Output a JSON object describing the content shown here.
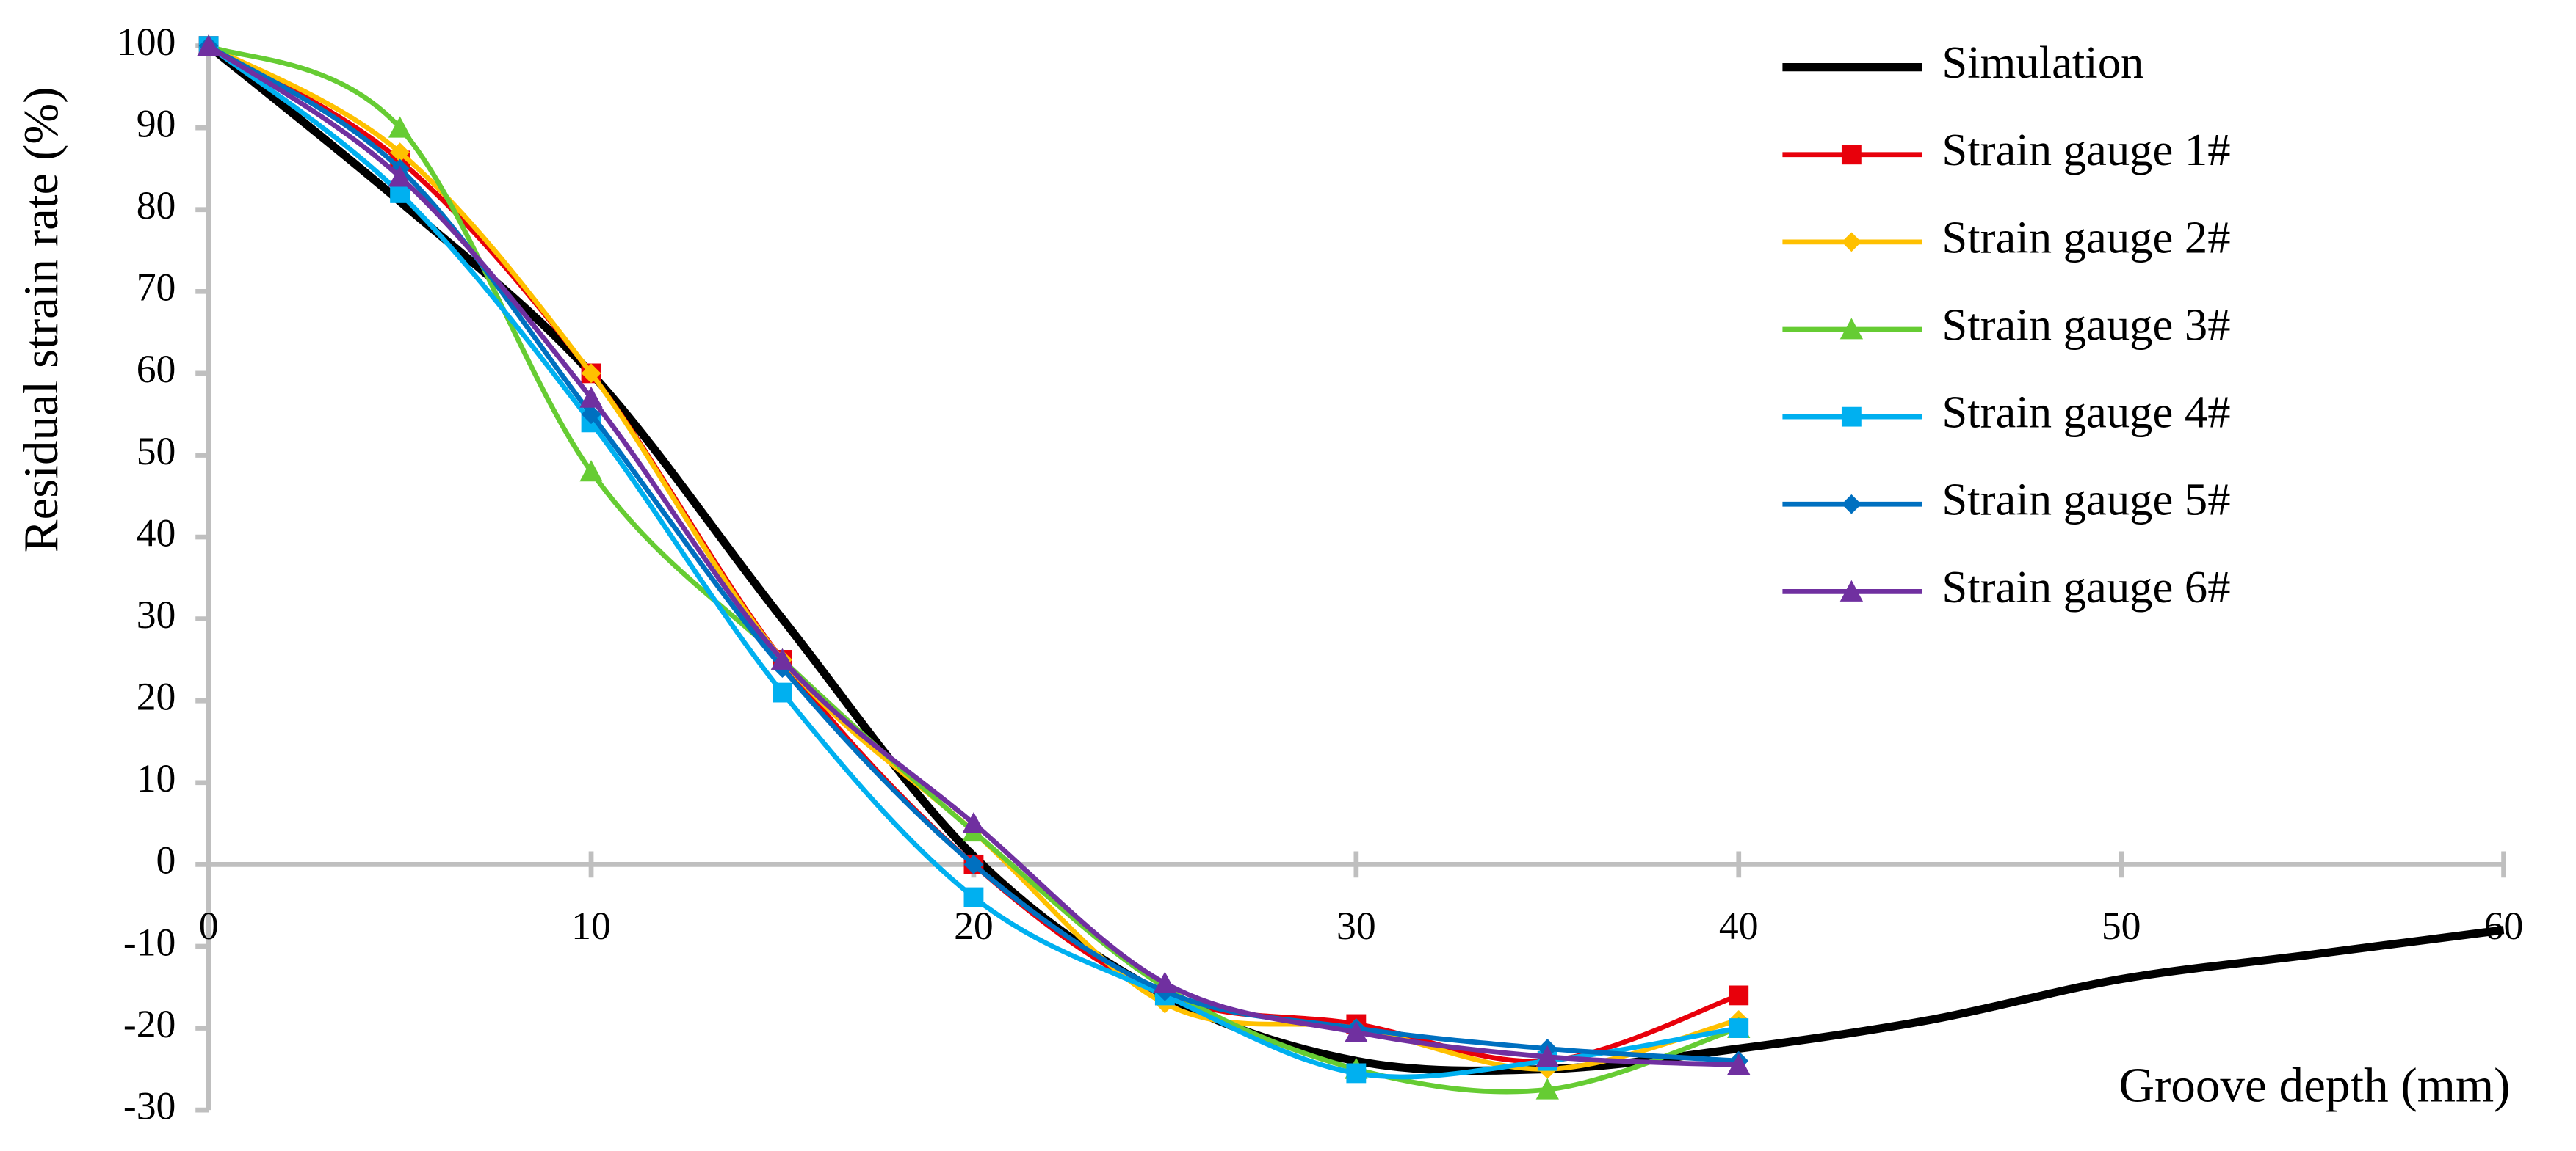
{
  "chart_data": {
    "type": "line",
    "x_label": "Groove depth (mm)",
    "y_label": "Residual strain rate (%)",
    "xlim": [
      0,
      60
    ],
    "ylim": [
      -30,
      100
    ],
    "xticks": [
      0,
      10,
      20,
      30,
      40,
      50,
      60
    ],
    "yticks": [
      -30,
      -20,
      -10,
      0,
      10,
      20,
      30,
      40,
      50,
      60,
      70,
      80,
      90,
      100
    ],
    "smooth": true,
    "legend": "top-right",
    "series": [
      {
        "name": "Simulation",
        "color": "#000000",
        "marker": "none",
        "x": [
          0,
          5,
          10,
          15,
          20,
          25,
          30,
          35,
          40,
          45,
          50,
          55,
          60
        ],
        "values": [
          100,
          81,
          60,
          30,
          1,
          -16,
          -24,
          -25,
          -22.5,
          -19,
          -14,
          -11,
          -8
        ]
      },
      {
        "name": "Strain gauge 1#",
        "color": "#e8000b",
        "marker": "square",
        "x": [
          0,
          5,
          10,
          15,
          20,
          25,
          30,
          35,
          40
        ],
        "values": [
          100,
          86,
          60,
          25,
          0,
          -16,
          -19.5,
          -24,
          -16
        ]
      },
      {
        "name": "Strain gauge 2#",
        "color": "#ffc000",
        "marker": "diamond",
        "x": [
          0,
          5,
          10,
          15,
          20,
          25,
          30,
          35,
          40
        ],
        "values": [
          100,
          87,
          60,
          25,
          4,
          -17,
          -20,
          -25,
          -19
        ]
      },
      {
        "name": "Strain gauge 3#",
        "color": "#66cc33",
        "marker": "triangle",
        "x": [
          0,
          5,
          10,
          15,
          20,
          25,
          30,
          35,
          40
        ],
        "values": [
          100,
          90,
          48,
          25,
          4,
          -15,
          -25,
          -27.5,
          -20
        ]
      },
      {
        "name": "Strain gauge 4#",
        "color": "#00b0f0",
        "marker": "square",
        "x": [
          0,
          5,
          10,
          15,
          20,
          25,
          30,
          35,
          40
        ],
        "values": [
          100,
          82,
          54,
          21,
          -4,
          -16,
          -25.5,
          -24,
          -20
        ]
      },
      {
        "name": "Strain gauge 5#",
        "color": "#0070c0",
        "marker": "diamond",
        "x": [
          0,
          5,
          10,
          15,
          20,
          25,
          30,
          35,
          40
        ],
        "values": [
          100,
          85,
          55,
          24,
          0,
          -15.5,
          -20,
          -22.5,
          -24
        ]
      },
      {
        "name": "Strain gauge 6#",
        "color": "#7030a0",
        "marker": "triangle",
        "x": [
          0,
          5,
          10,
          15,
          20,
          25,
          30,
          35,
          40
        ],
        "values": [
          100,
          84,
          57,
          25,
          5,
          -14.5,
          -20.5,
          -23.5,
          -24.5
        ]
      }
    ]
  }
}
